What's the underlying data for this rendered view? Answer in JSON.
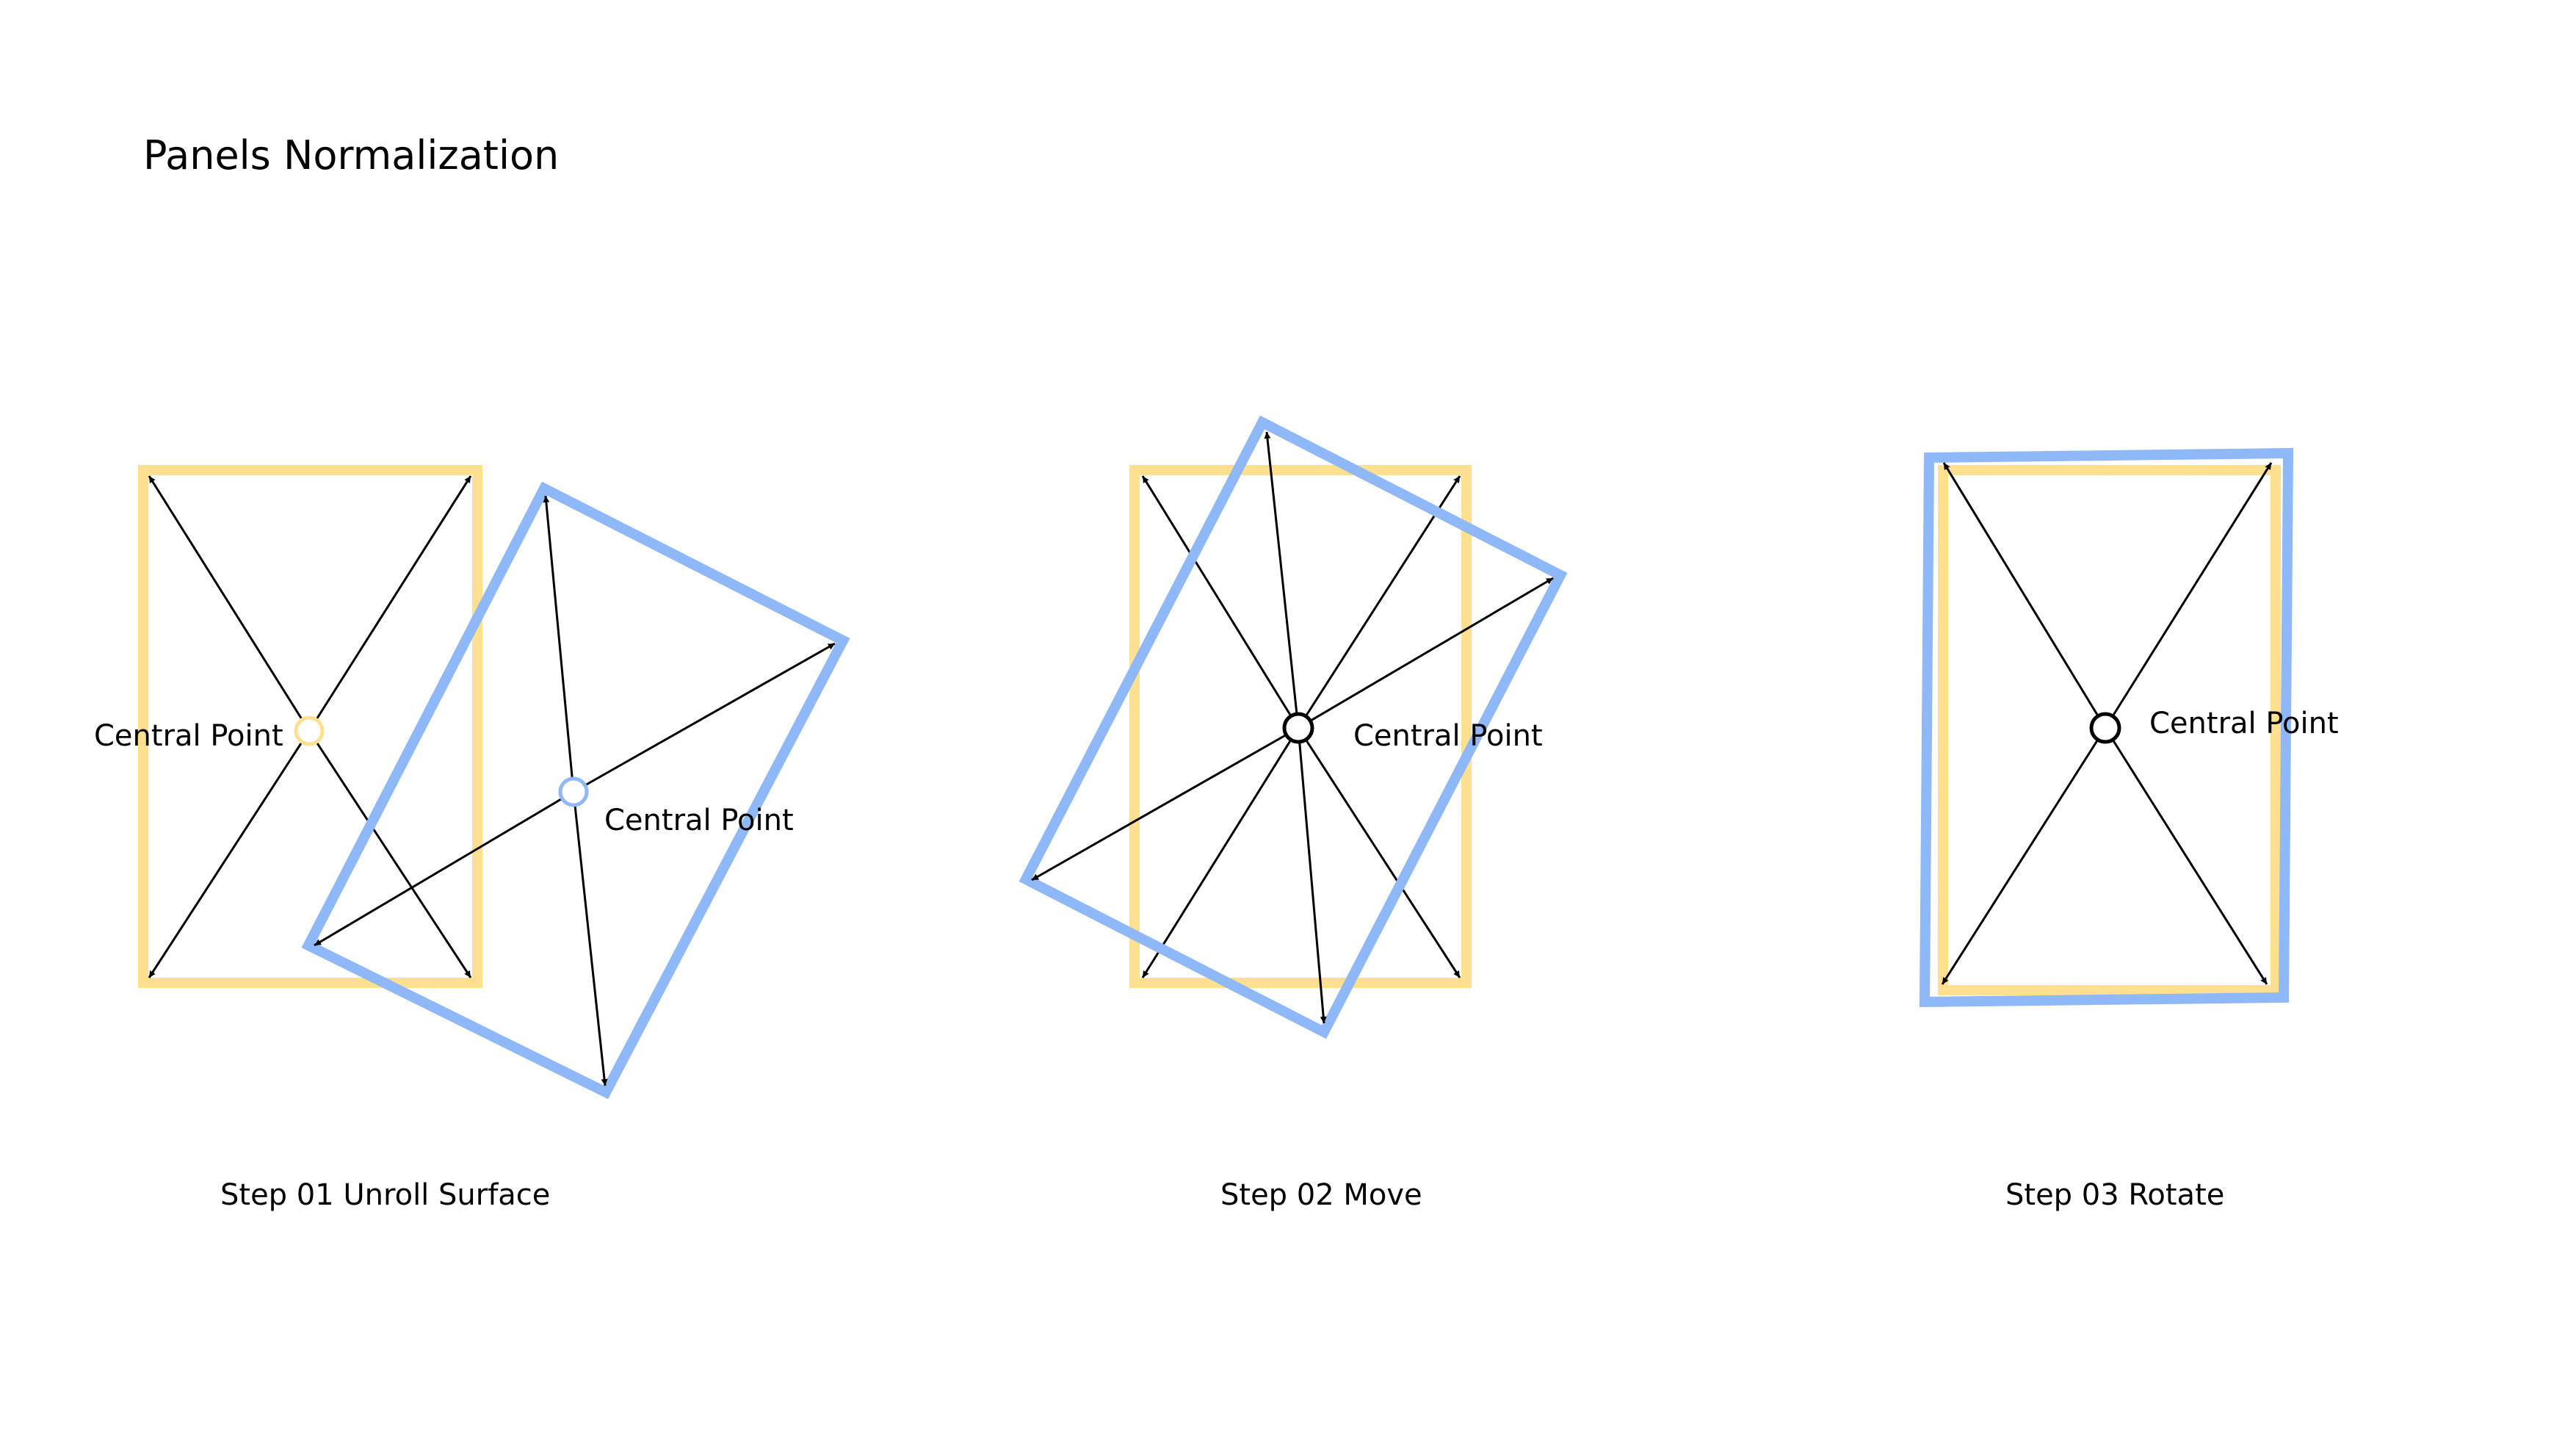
{
  "title": "Panels Normalization",
  "colors": {
    "reference_panel": "#FFE08E",
    "unrolled_panel": "#8FB8F8",
    "arrow": "#000000",
    "background": "#FFFFFF"
  },
  "steps": [
    {
      "caption": "Step 01 Unroll Surface",
      "center_labels": [
        "Central Point",
        "Central Point"
      ]
    },
    {
      "caption": "Step 02 Move",
      "center_labels": [
        "Central Point"
      ]
    },
    {
      "caption": "Step 03 Rotate",
      "center_labels": [
        "Central Point"
      ]
    }
  ]
}
